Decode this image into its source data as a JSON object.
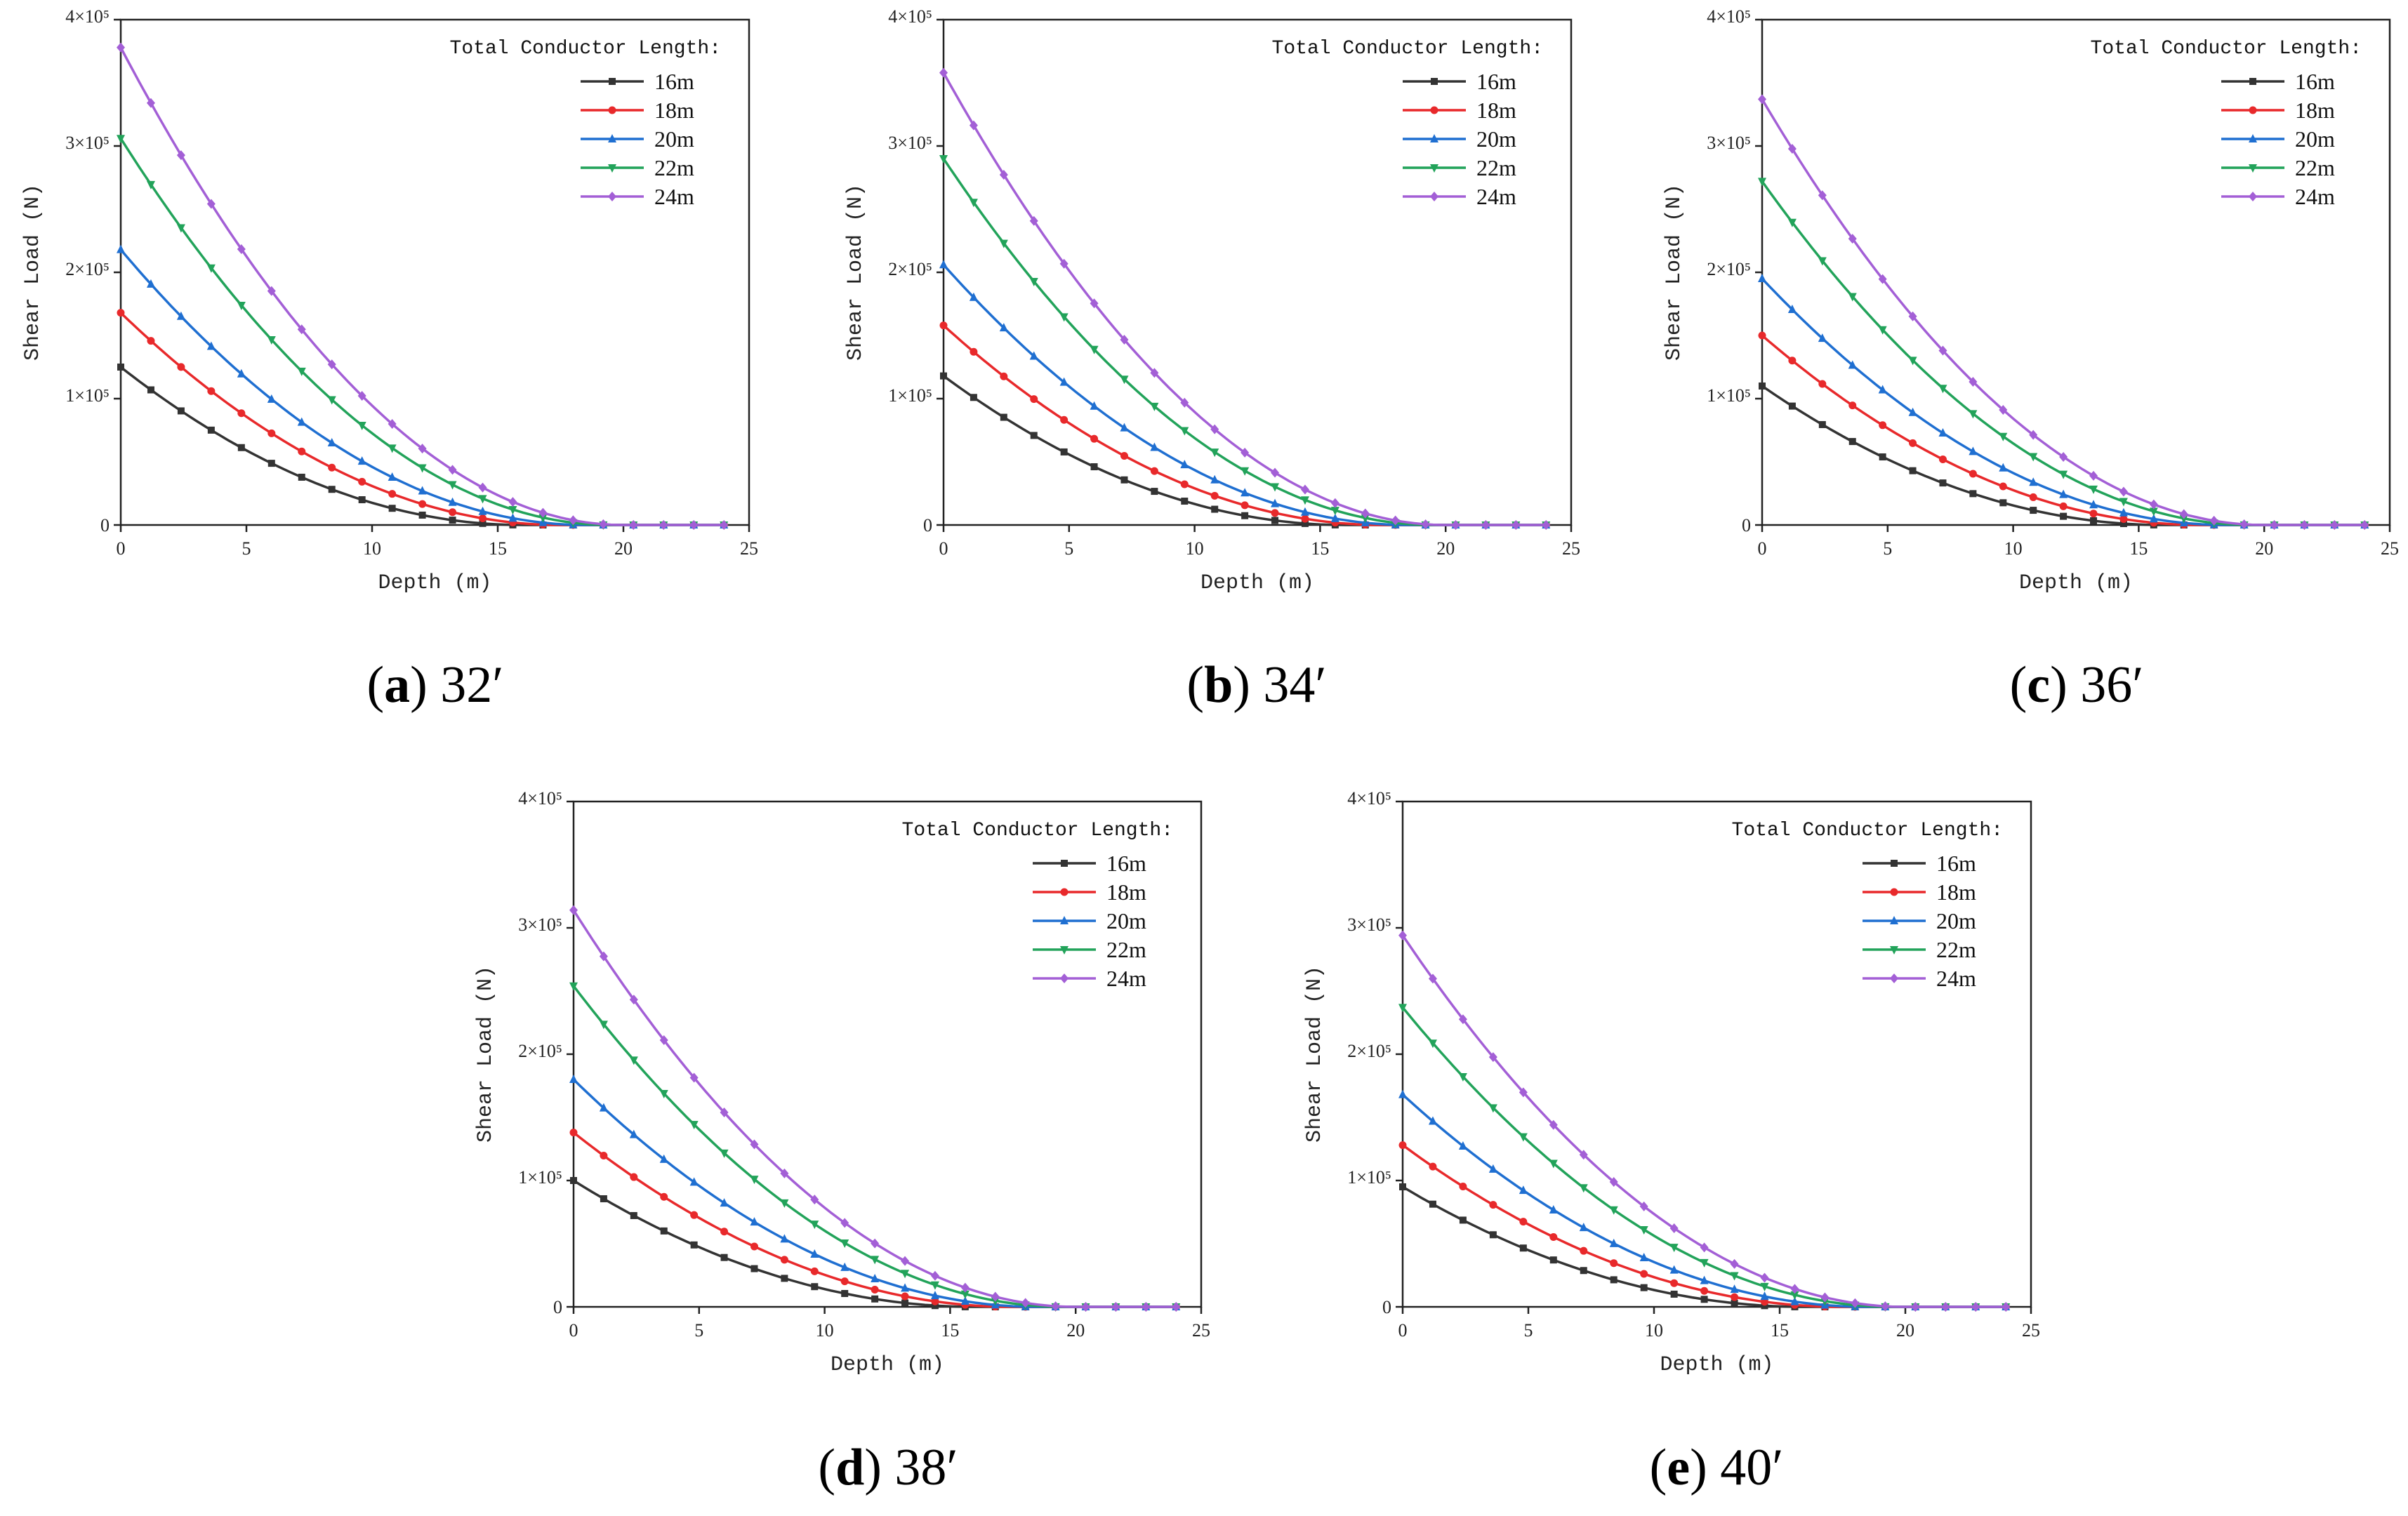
{
  "colors": {
    "16m": "#333333",
    "18m": "#e8292b",
    "20m": "#1f6fd1",
    "22m": "#22a35a",
    "24m": "#a35fd6"
  },
  "legend_title": "Total Conductor Length:",
  "y_tick_labels": [
    "0",
    "1×10⁵",
    "2×10⁵",
    "3×10⁵",
    "4×10⁵"
  ],
  "chart_data": [
    {
      "type": "line",
      "caption_letter": "a",
      "caption_text": " 32′",
      "xlabel": "Depth (m)",
      "ylabel": "Shear Load (N)",
      "xlim": [
        0,
        25
      ],
      "ylim": [
        0,
        400000
      ],
      "xticks": [
        0,
        5,
        10,
        15,
        20,
        25
      ],
      "yticks": [
        0,
        100000,
        200000,
        300000,
        400000
      ],
      "legend_position": "top-right",
      "series": [
        {
          "name": "16m",
          "start": 125000,
          "zero_depth": 16
        },
        {
          "name": "18m",
          "start": 168000,
          "zero_depth": 17.5
        },
        {
          "name": "20m",
          "start": 218000,
          "zero_depth": 18.5
        },
        {
          "name": "22m",
          "start": 306000,
          "zero_depth": 19.5
        },
        {
          "name": "24m",
          "start": 378000,
          "zero_depth": 20
        }
      ]
    },
    {
      "type": "line",
      "caption_letter": "b",
      "caption_text": " 34′",
      "xlabel": "Depth (m)",
      "ylabel": "Shear Load (N)",
      "xlim": [
        0,
        25
      ],
      "ylim": [
        0,
        400000
      ],
      "xticks": [
        0,
        5,
        10,
        15,
        20,
        25
      ],
      "yticks": [
        0,
        100000,
        200000,
        300000,
        400000
      ],
      "legend_position": "top-right",
      "series": [
        {
          "name": "16m",
          "start": 118000,
          "zero_depth": 16
        },
        {
          "name": "18m",
          "start": 158000,
          "zero_depth": 17.5
        },
        {
          "name": "20m",
          "start": 206000,
          "zero_depth": 18.5
        },
        {
          "name": "22m",
          "start": 290000,
          "zero_depth": 19.5
        },
        {
          "name": "24m",
          "start": 358000,
          "zero_depth": 20
        }
      ]
    },
    {
      "type": "line",
      "caption_letter": "c",
      "caption_text": " 36′",
      "xlabel": "Depth (m)",
      "ylabel": "Shear Load (N)",
      "xlim": [
        0,
        25
      ],
      "ylim": [
        0,
        400000
      ],
      "xticks": [
        0,
        5,
        10,
        15,
        20,
        25
      ],
      "yticks": [
        0,
        100000,
        200000,
        300000,
        400000
      ],
      "legend_position": "top-right",
      "series": [
        {
          "name": "16m",
          "start": 110000,
          "zero_depth": 16
        },
        {
          "name": "18m",
          "start": 150000,
          "zero_depth": 17.5
        },
        {
          "name": "20m",
          "start": 195000,
          "zero_depth": 18.5
        },
        {
          "name": "22m",
          "start": 272000,
          "zero_depth": 19.5
        },
        {
          "name": "24m",
          "start": 337000,
          "zero_depth": 20
        }
      ]
    },
    {
      "type": "line",
      "caption_letter": "d",
      "caption_text": " 38′",
      "xlabel": "Depth (m)",
      "ylabel": "Shear Load (N)",
      "xlim": [
        0,
        25
      ],
      "ylim": [
        0,
        400000
      ],
      "xticks": [
        0,
        5,
        10,
        15,
        20,
        25
      ],
      "yticks": [
        0,
        100000,
        200000,
        300000,
        400000
      ],
      "legend_position": "top-right",
      "series": [
        {
          "name": "16m",
          "start": 100000,
          "zero_depth": 16
        },
        {
          "name": "18m",
          "start": 138000,
          "zero_depth": 17.5
        },
        {
          "name": "20m",
          "start": 180000,
          "zero_depth": 18.5
        },
        {
          "name": "22m",
          "start": 254000,
          "zero_depth": 19.5
        },
        {
          "name": "24m",
          "start": 314000,
          "zero_depth": 20
        }
      ]
    },
    {
      "type": "line",
      "caption_letter": "e",
      "caption_text": " 40′",
      "xlabel": "Depth (m)",
      "ylabel": "Shear Load (N)",
      "xlim": [
        0,
        25
      ],
      "ylim": [
        0,
        400000
      ],
      "xticks": [
        0,
        5,
        10,
        15,
        20,
        25
      ],
      "yticks": [
        0,
        100000,
        200000,
        300000,
        400000
      ],
      "legend_position": "top-right",
      "series": [
        {
          "name": "16m",
          "start": 95000,
          "zero_depth": 16
        },
        {
          "name": "18m",
          "start": 128000,
          "zero_depth": 17.5
        },
        {
          "name": "20m",
          "start": 168000,
          "zero_depth": 18.5
        },
        {
          "name": "22m",
          "start": 237000,
          "zero_depth": 19.5
        },
        {
          "name": "24m",
          "start": 294000,
          "zero_depth": 20
        }
      ]
    }
  ]
}
